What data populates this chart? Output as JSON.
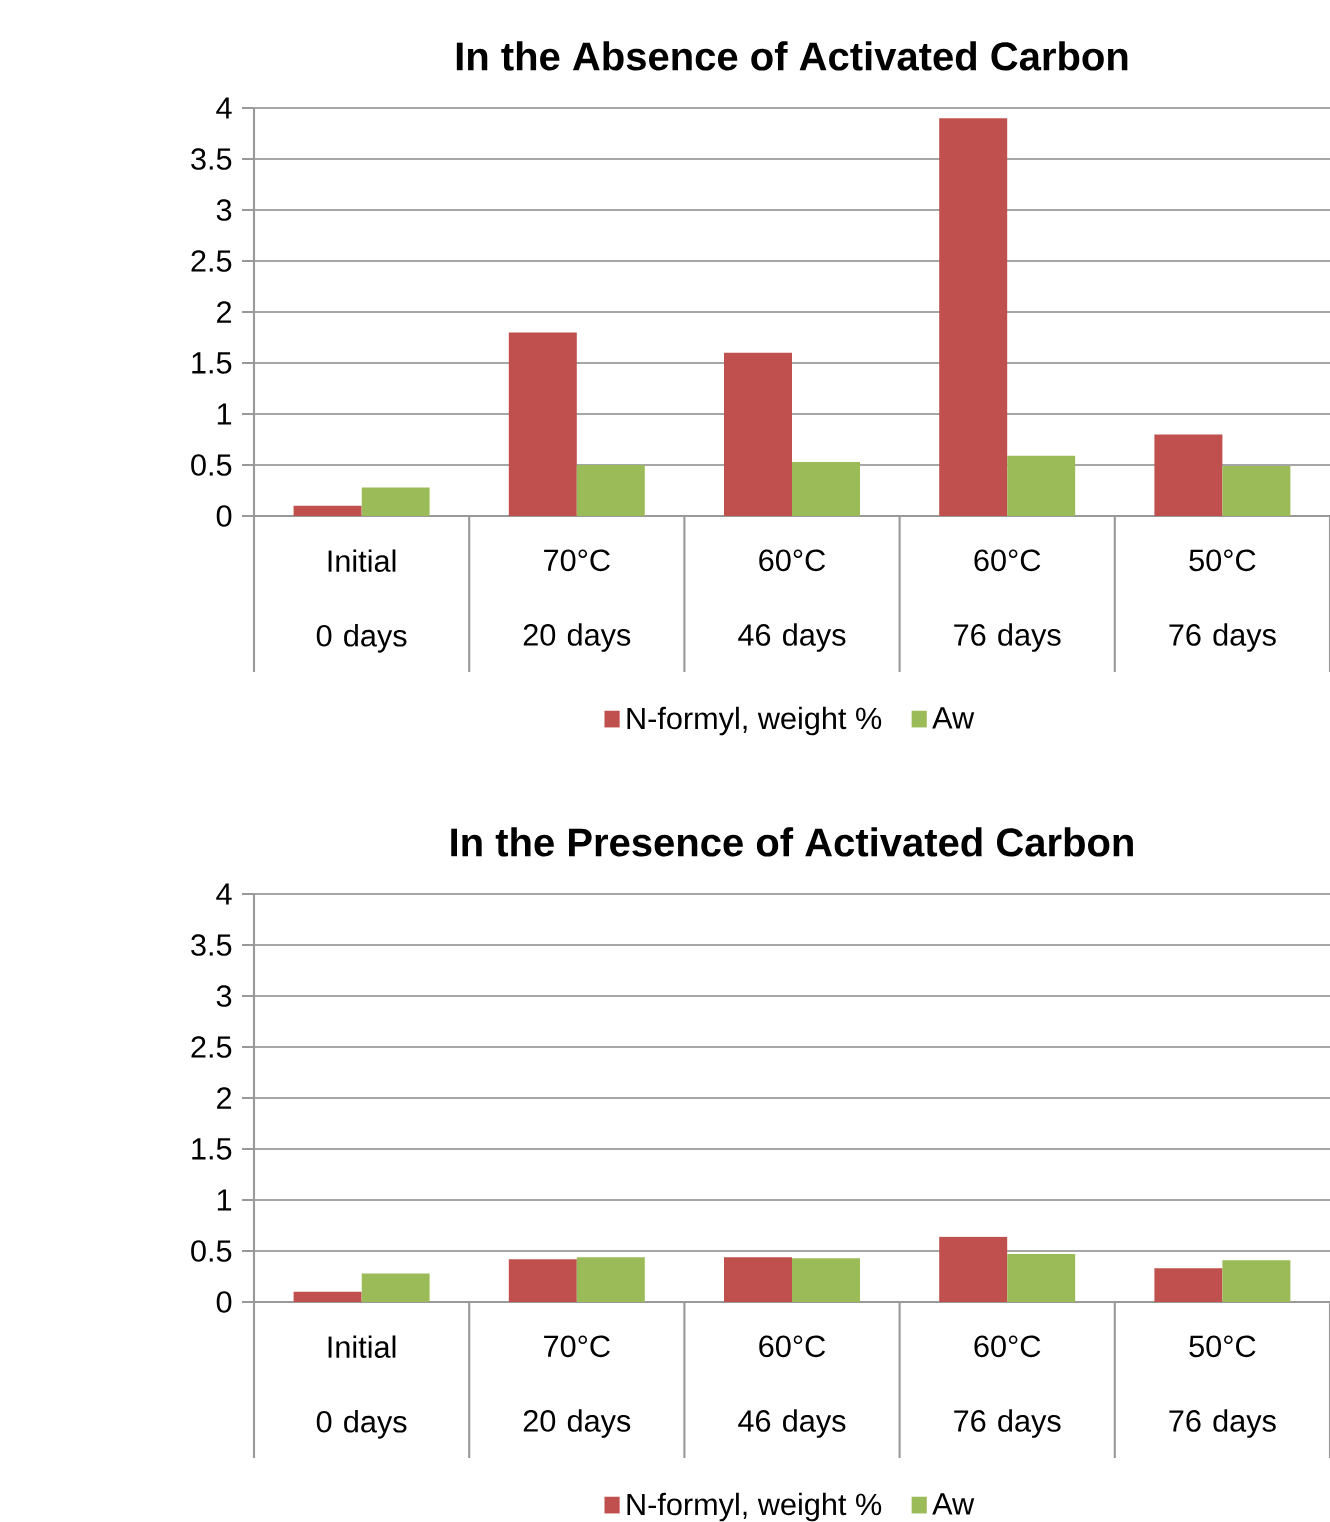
{
  "chart_data": [
    {
      "type": "bar",
      "title": "In the Absence of Activated Carbon",
      "categories": [
        "Initial 0 days",
        "70°C 20 days",
        "60°C 46 days",
        "60°C 76 days",
        "50°C 76 days"
      ],
      "series": [
        {
          "name": "N-formyl, weight %",
          "color": "#c0504d",
          "values": [
            0.1,
            1.8,
            1.6,
            3.9,
            0.8
          ]
        },
        {
          "name": "Aw",
          "color": "#9bbb59",
          "values": [
            0.28,
            0.5,
            0.53,
            0.59,
            0.49
          ]
        }
      ],
      "ylim": [
        0,
        4
      ],
      "yticks": [
        0,
        0.5,
        1,
        1.5,
        2,
        2.5,
        3,
        3.5,
        4
      ],
      "grid": "y",
      "legend": "bottom"
    },
    {
      "type": "bar",
      "title": "In the Presence of Activated Carbon",
      "categories": [
        "Initial 0 days",
        "70°C 20 days",
        "60°C 46 days",
        "60°C 76 days",
        "50°C 76 days"
      ],
      "series": [
        {
          "name": "N-formyl, weight %",
          "color": "#c0504d",
          "values": [
            0.1,
            0.42,
            0.44,
            0.64,
            0.33
          ]
        },
        {
          "name": "Aw",
          "color": "#9bbb59",
          "values": [
            0.28,
            0.44,
            0.43,
            0.47,
            0.41
          ]
        }
      ],
      "ylim": [
        0,
        4
      ],
      "yticks": [
        0,
        0.5,
        1,
        1.5,
        2,
        2.5,
        3,
        3.5,
        4
      ],
      "grid": "y",
      "legend": "bottom"
    }
  ]
}
